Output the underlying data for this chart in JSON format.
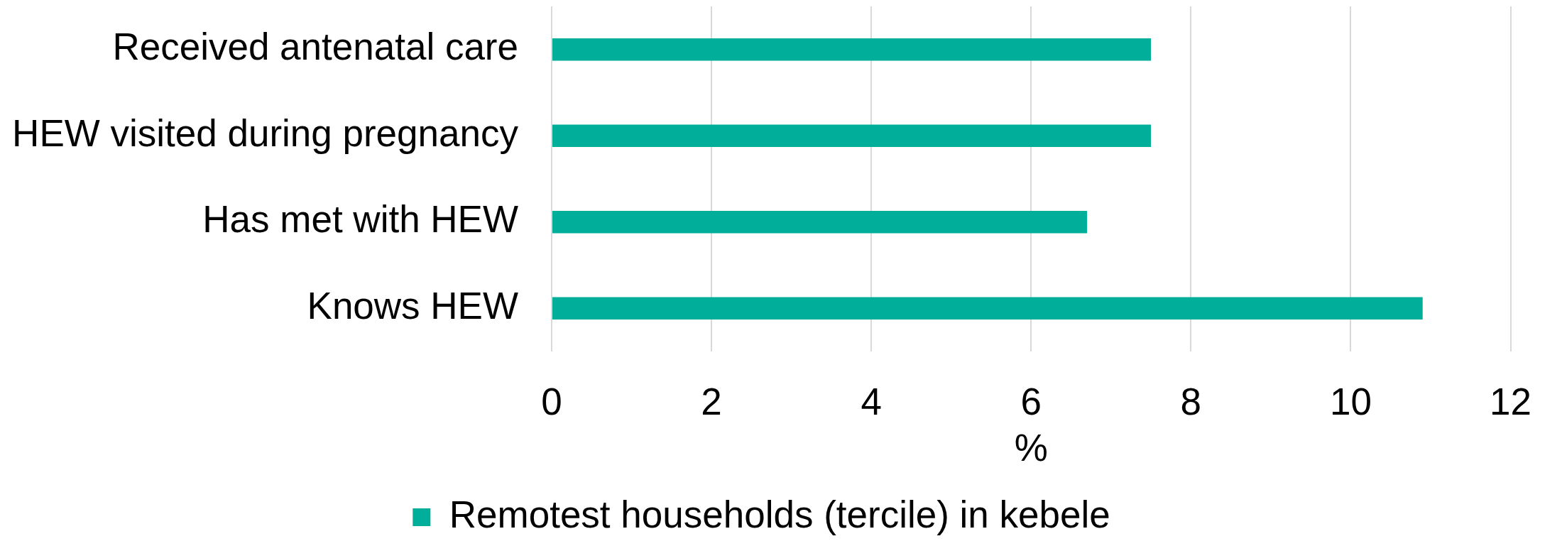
{
  "chart_data": {
    "type": "bar",
    "orientation": "horizontal",
    "categories": [
      "Received antenatal care",
      "HEW visited during pregnancy",
      "Has met with HEW",
      "Knows HEW"
    ],
    "series": [
      {
        "name": "Remotest households (tercile) in kebele",
        "color": "#00ae9a",
        "values": [
          7.5,
          7.5,
          6.7,
          10.9
        ]
      }
    ],
    "xlabel": "%",
    "xlim": [
      0,
      12
    ],
    "xticks": [
      0,
      2,
      4,
      6,
      8,
      10,
      12
    ],
    "grid": "x",
    "legend": "bottom"
  }
}
